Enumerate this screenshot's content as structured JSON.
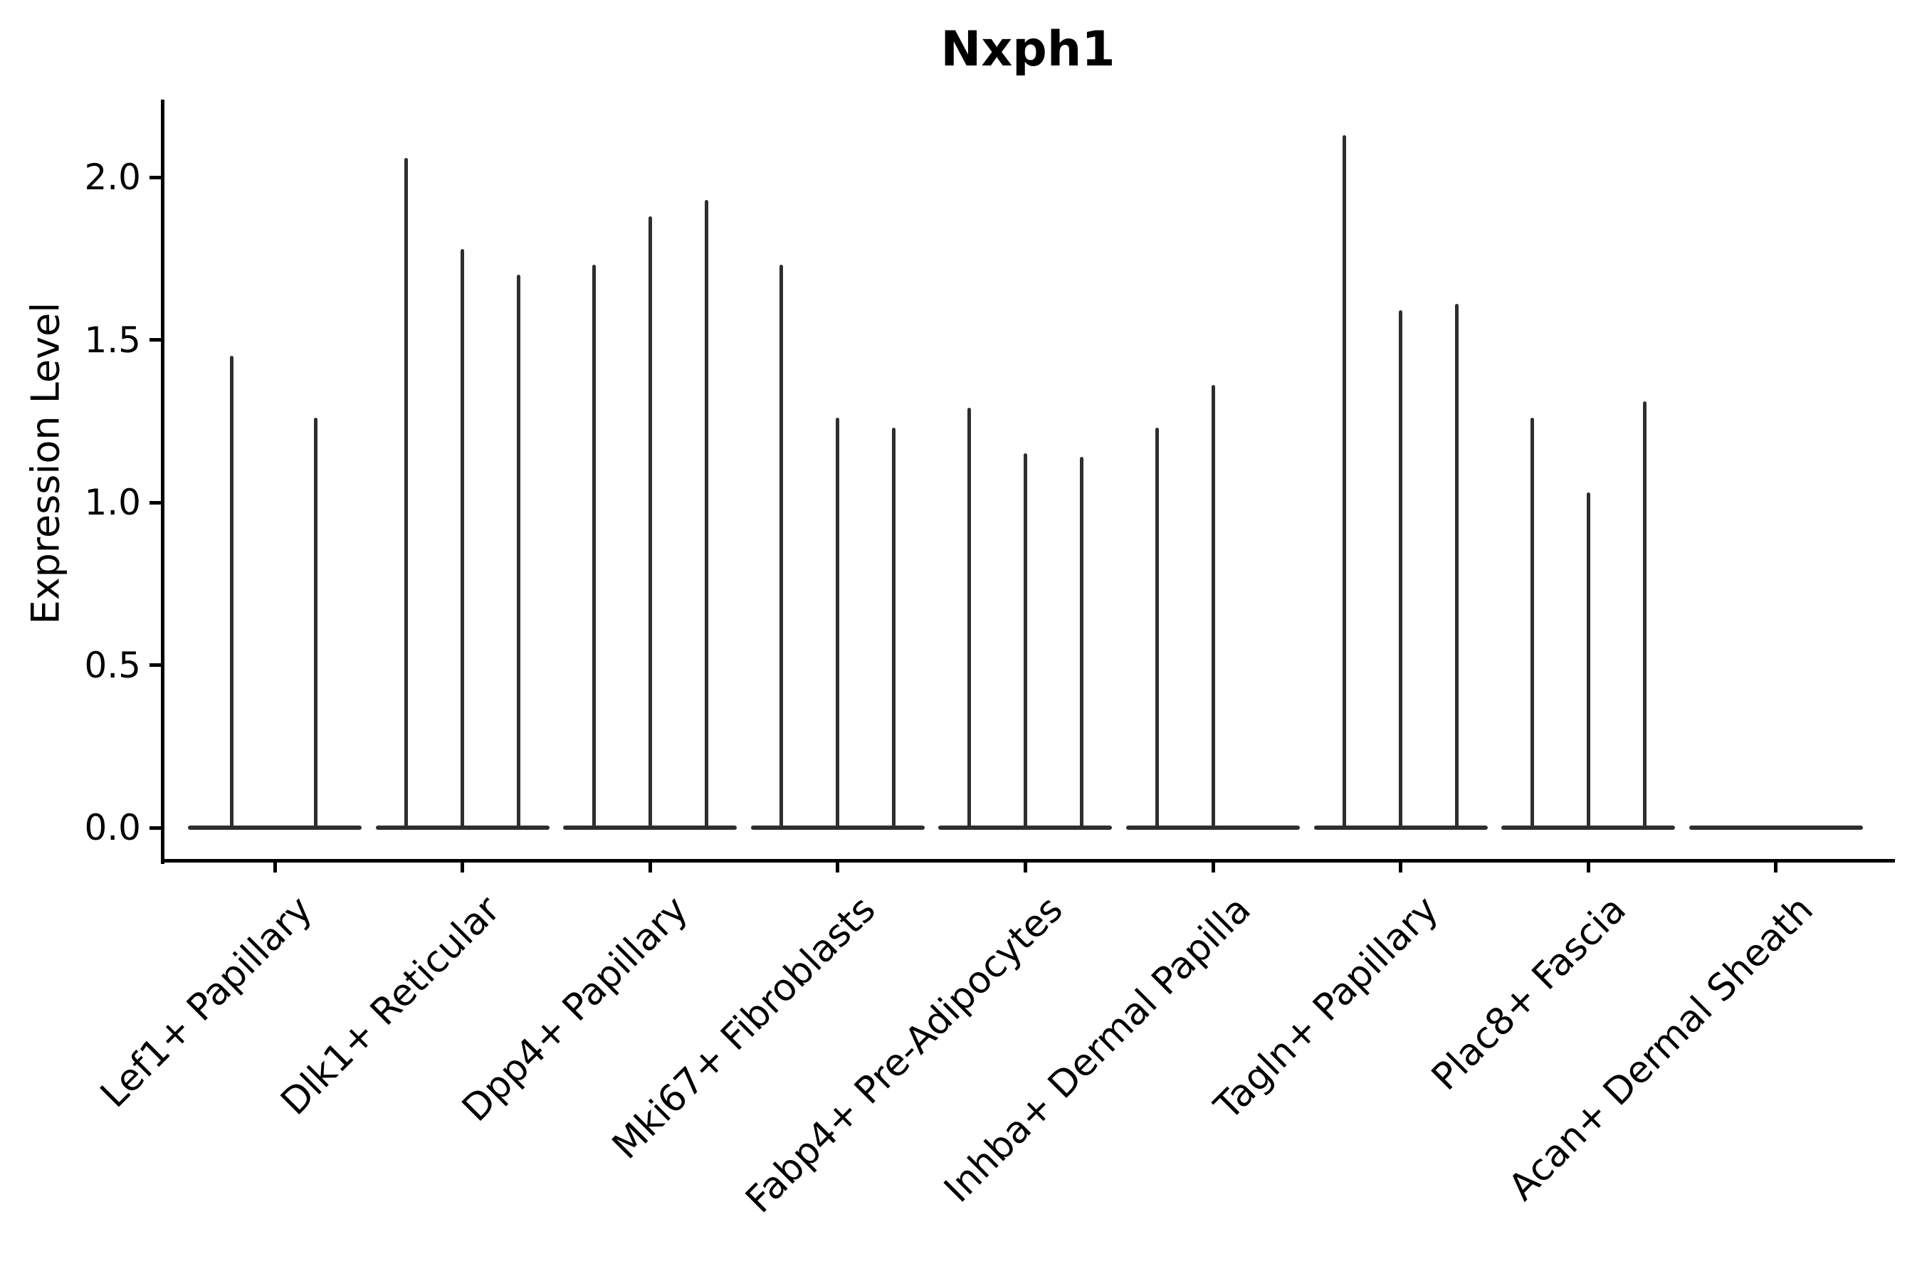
{
  "chart_data": {
    "type": "violin",
    "title": "Nxph1",
    "xlabel": "",
    "ylabel": "Expression Level",
    "ytick_labels": [
      "0.0",
      "0.5",
      "1.0",
      "1.5",
      "2.0"
    ],
    "yticks": [
      0.0,
      0.5,
      1.0,
      1.5,
      2.0
    ],
    "ylim": [
      -0.1,
      2.24
    ],
    "x_rotation": 45,
    "grid": false,
    "legend": "none",
    "style_note": "needle-like violins: flat base at 0 expression with thin spikes to max value per sub-violin",
    "categories": [
      "Lef1+ Papillary",
      "Dlk1+ Reticular",
      "Dpp4+ Papillary",
      "Mki67+ Fibroblasts",
      "Fabp4+ Pre-Adipocytes",
      "Inhba+ Dermal Papilla",
      "Tagln+ Papillary",
      "Plac8+ Fascia",
      "Acan+ Dermal Sheath"
    ],
    "groups": [
      {
        "label": "Lef1+ Papillary",
        "offsets": [
          -61,
          57
        ],
        "peaks": [
          1.45,
          1.26
        ]
      },
      {
        "label": "Dlk1+ Reticular",
        "offsets": [
          -79,
          0,
          79
        ],
        "peaks": [
          2.06,
          1.78,
          1.7
        ]
      },
      {
        "label": "Dpp4+ Papillary",
        "offsets": [
          -79,
          0,
          79
        ],
        "peaks": [
          1.73,
          1.88,
          1.93
        ]
      },
      {
        "label": "Mki67+ Fibroblasts",
        "offsets": [
          -79,
          0,
          79
        ],
        "peaks": [
          1.73,
          1.26,
          1.23
        ]
      },
      {
        "label": "Fabp4+ Pre-Adipocytes",
        "offsets": [
          -79,
          0,
          79
        ],
        "peaks": [
          1.29,
          1.15,
          1.14
        ]
      },
      {
        "label": "Inhba+ Dermal Papilla",
        "offsets": [
          -79,
          0
        ],
        "peaks": [
          1.23,
          1.36
        ]
      },
      {
        "label": "Tagln+ Papillary",
        "offsets": [
          -79,
          0,
          79
        ],
        "peaks": [
          2.13,
          1.59,
          1.61
        ]
      },
      {
        "label": "Plac8+ Fascia",
        "offsets": [
          -79,
          0,
          79
        ],
        "peaks": [
          1.26,
          1.03,
          1.31
        ]
      },
      {
        "label": "Acan+ Dermal Sheath",
        "offsets": [],
        "peaks": []
      }
    ],
    "colors": {
      "line_color": "#2e2e2e",
      "axis_color": "#000000",
      "text_color": "#000000",
      "background": "#ffffff"
    }
  }
}
